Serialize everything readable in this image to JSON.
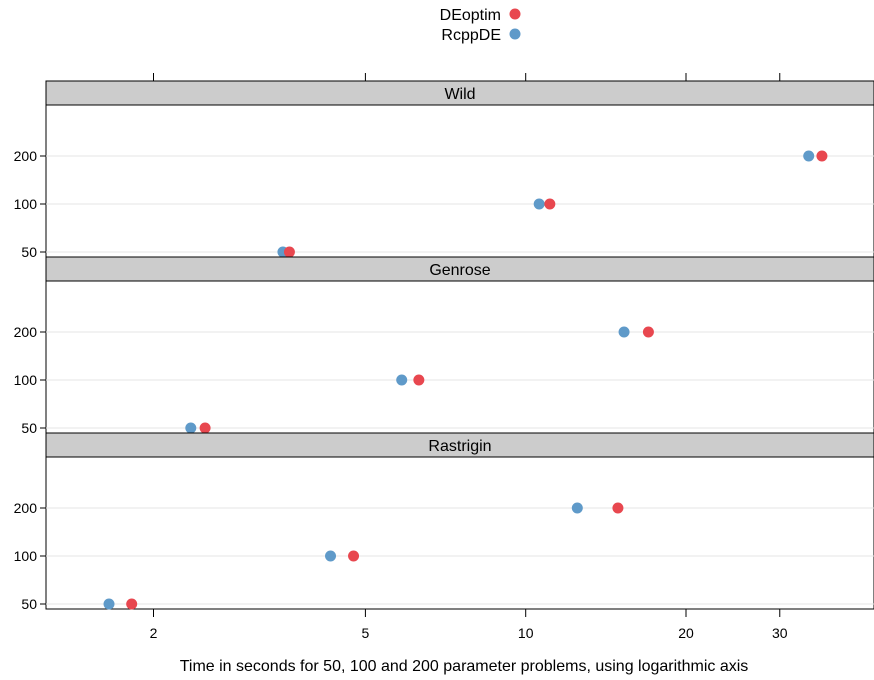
{
  "chart_data": {
    "type": "scatter",
    "title": "",
    "xlabel": "Time in seconds for 50, 100 and 200 parameter problems, using logarithmic axis",
    "ylabel": "",
    "x_scale": "log",
    "xlim": [
      1.5,
      45
    ],
    "x_ticks": [
      2,
      5,
      10,
      20,
      30
    ],
    "x_tick_labels": [
      "2",
      "5",
      "10",
      "20",
      "30"
    ],
    "categories": [
      "50",
      "100",
      "200"
    ],
    "grid": true,
    "legend_position": "top",
    "colors": {
      "DEoptim": "#e8474f",
      "RcppDE": "#5f9ac9"
    },
    "series": [
      {
        "name": "DEoptim",
        "color": "#e8474f"
      },
      {
        "name": "RcppDE",
        "color": "#5f9ac9"
      }
    ],
    "panels": [
      {
        "label": "Wild",
        "values": {
          "DEoptim": {
            "50": 3.6,
            "100": 11.1,
            "200": 36.0
          },
          "RcppDE": {
            "50": 3.5,
            "100": 10.6,
            "200": 34.0
          }
        }
      },
      {
        "label": "Genrose",
        "values": {
          "DEoptim": {
            "50": 2.5,
            "100": 6.3,
            "200": 17.0
          },
          "RcppDE": {
            "50": 2.35,
            "100": 5.85,
            "200": 15.3
          }
        }
      },
      {
        "label": "Rastrigin",
        "values": {
          "DEoptim": {
            "50": 1.82,
            "100": 4.75,
            "200": 14.9
          },
          "RcppDE": {
            "50": 1.65,
            "100": 4.3,
            "200": 12.5
          }
        }
      }
    ]
  }
}
